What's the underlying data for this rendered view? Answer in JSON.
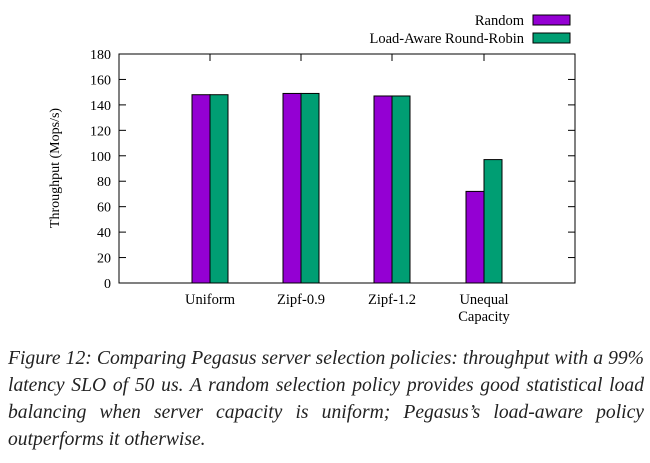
{
  "chart_data": {
    "type": "bar",
    "ylabel": "Throughput (Mops/s)",
    "xlabel": "",
    "title": "",
    "ylim": [
      0,
      180
    ],
    "yticks": [
      0,
      20,
      40,
      60,
      80,
      100,
      120,
      140,
      160,
      180
    ],
    "categories": [
      "Uniform",
      "Zipf-0.9",
      "Zipf-1.2",
      "Unequal Capacity"
    ],
    "series": [
      {
        "name": "Random",
        "color": "#9400d3",
        "values": [
          148,
          149,
          147,
          72
        ]
      },
      {
        "name": "Load-Aware Round-Robin",
        "color": "#009e73",
        "values": [
          148,
          149,
          147,
          97
        ]
      }
    ],
    "legend": "top-right",
    "grid": false
  },
  "caption": "Figure 12: Comparing Pegasus server selection policies: throughput with a 99% latency SLO of 50 us. A random selection policy provides good statistical load balancing when server capacity is uniform; Pegasus’s load-aware policy outperforms it otherwise."
}
